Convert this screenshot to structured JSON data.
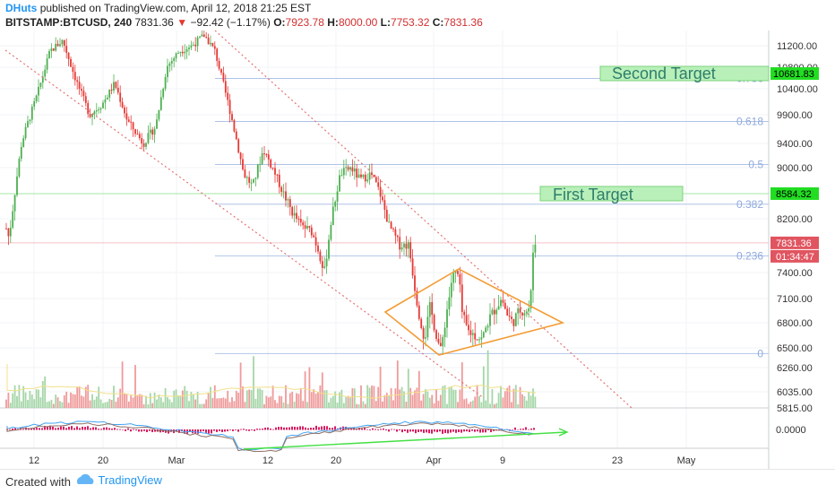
{
  "header": {
    "author": "DHuts",
    "published": "published on TradingView.com, April 12, 2018 21:25 EST",
    "symbol": "BITSTAMP:BTCUSD, 240",
    "last": "7831.36",
    "change_arrow": "▼",
    "change": "−92.42 (−1.17%)",
    "o_label": "O:",
    "o": "7923.78",
    "h_label": "H:",
    "h": "8000.00",
    "l_label": "L:",
    "l": "7753.32",
    "c_label": "C:",
    "c": "7831.36"
  },
  "footer": {
    "created": "Created with",
    "brand": "TradingView"
  },
  "colors": {
    "up": "#4caf50",
    "down": "#e53935",
    "fib": "#b0c4e8",
    "channel": "#e57373",
    "triangle": "#f39c34",
    "target_fill": "#b9f0b9",
    "price_box": "#e05560",
    "target_box": "#22dd22"
  },
  "chart_data": {
    "type": "candlestick",
    "price_axis": {
      "ticks": [
        "11200.00",
        "10800.00",
        "10400.00",
        "9900.00",
        "9400.00",
        "9000.00",
        "8200.00",
        "7400.00",
        "7100.00",
        "6800.00",
        "6500.00",
        "6260.00",
        "6035.00",
        "5815.00"
      ]
    },
    "time_axis": {
      "ticks": [
        "12",
        "20",
        "Mar",
        "12",
        "20",
        "Apr",
        "9",
        "23",
        "May"
      ]
    },
    "last_price_label": "7831.36",
    "countdown_label": "01:34:47",
    "fib_levels": [
      {
        "label": "0.786",
        "price": 10590
      },
      {
        "label": "0.618",
        "price": 9780
      },
      {
        "label": "0.5",
        "price": 9050
      },
      {
        "label": "0.382",
        "price": 8420
      },
      {
        "label": "0.236",
        "price": 7640
      },
      {
        "label": "0",
        "price": 6430
      }
    ],
    "targets": [
      {
        "name": "Second Target",
        "price": 10681.83,
        "label": "10681.83"
      },
      {
        "name": "First Target",
        "price": 8584.32,
        "label": "8584.32"
      }
    ],
    "path_anchors": [
      [
        0,
        8400
      ],
      [
        10,
        7900
      ],
      [
        24,
        9400
      ],
      [
        40,
        10200
      ],
      [
        56,
        11100
      ],
      [
        70,
        11300
      ],
      [
        84,
        10600
      ],
      [
        100,
        9900
      ],
      [
        114,
        10100
      ],
      [
        128,
        10500
      ],
      [
        142,
        9800
      ],
      [
        160,
        9400
      ],
      [
        174,
        9700
      ],
      [
        186,
        10800
      ],
      [
        200,
        11100
      ],
      [
        214,
        11200
      ],
      [
        228,
        11400
      ],
      [
        240,
        11100
      ],
      [
        252,
        10300
      ],
      [
        262,
        9600
      ],
      [
        272,
        8900
      ],
      [
        282,
        8700
      ],
      [
        294,
        9300
      ],
      [
        304,
        9000
      ],
      [
        316,
        8600
      ],
      [
        326,
        8300
      ],
      [
        336,
        8100
      ],
      [
        348,
        8000
      ],
      [
        356,
        7700
      ],
      [
        362,
        7400
      ],
      [
        370,
        8200
      ],
      [
        380,
        8900
      ],
      [
        392,
        9000
      ],
      [
        402,
        8800
      ],
      [
        414,
        8900
      ],
      [
        424,
        8600
      ],
      [
        434,
        8100
      ],
      [
        446,
        7800
      ],
      [
        456,
        7800
      ],
      [
        462,
        7300
      ],
      [
        468,
        6900
      ],
      [
        474,
        6600
      ],
      [
        480,
        7000
      ],
      [
        486,
        6700
      ],
      [
        492,
        6450
      ],
      [
        498,
        6900
      ],
      [
        504,
        7300
      ],
      [
        508,
        7400
      ],
      [
        512,
        7350
      ],
      [
        516,
        6900
      ],
      [
        522,
        6700
      ],
      [
        530,
        6650
      ],
      [
        538,
        6600
      ],
      [
        546,
        6850
      ],
      [
        554,
        7000
      ],
      [
        560,
        7100
      ],
      [
        566,
        6900
      ],
      [
        572,
        6800
      ],
      [
        580,
        6950
      ],
      [
        588,
        6950
      ],
      [
        592,
        7000
      ],
      [
        594,
        7500
      ],
      [
        596,
        7900
      ],
      [
        598,
        7831
      ]
    ],
    "indicator": {
      "label": "0.0000"
    }
  }
}
